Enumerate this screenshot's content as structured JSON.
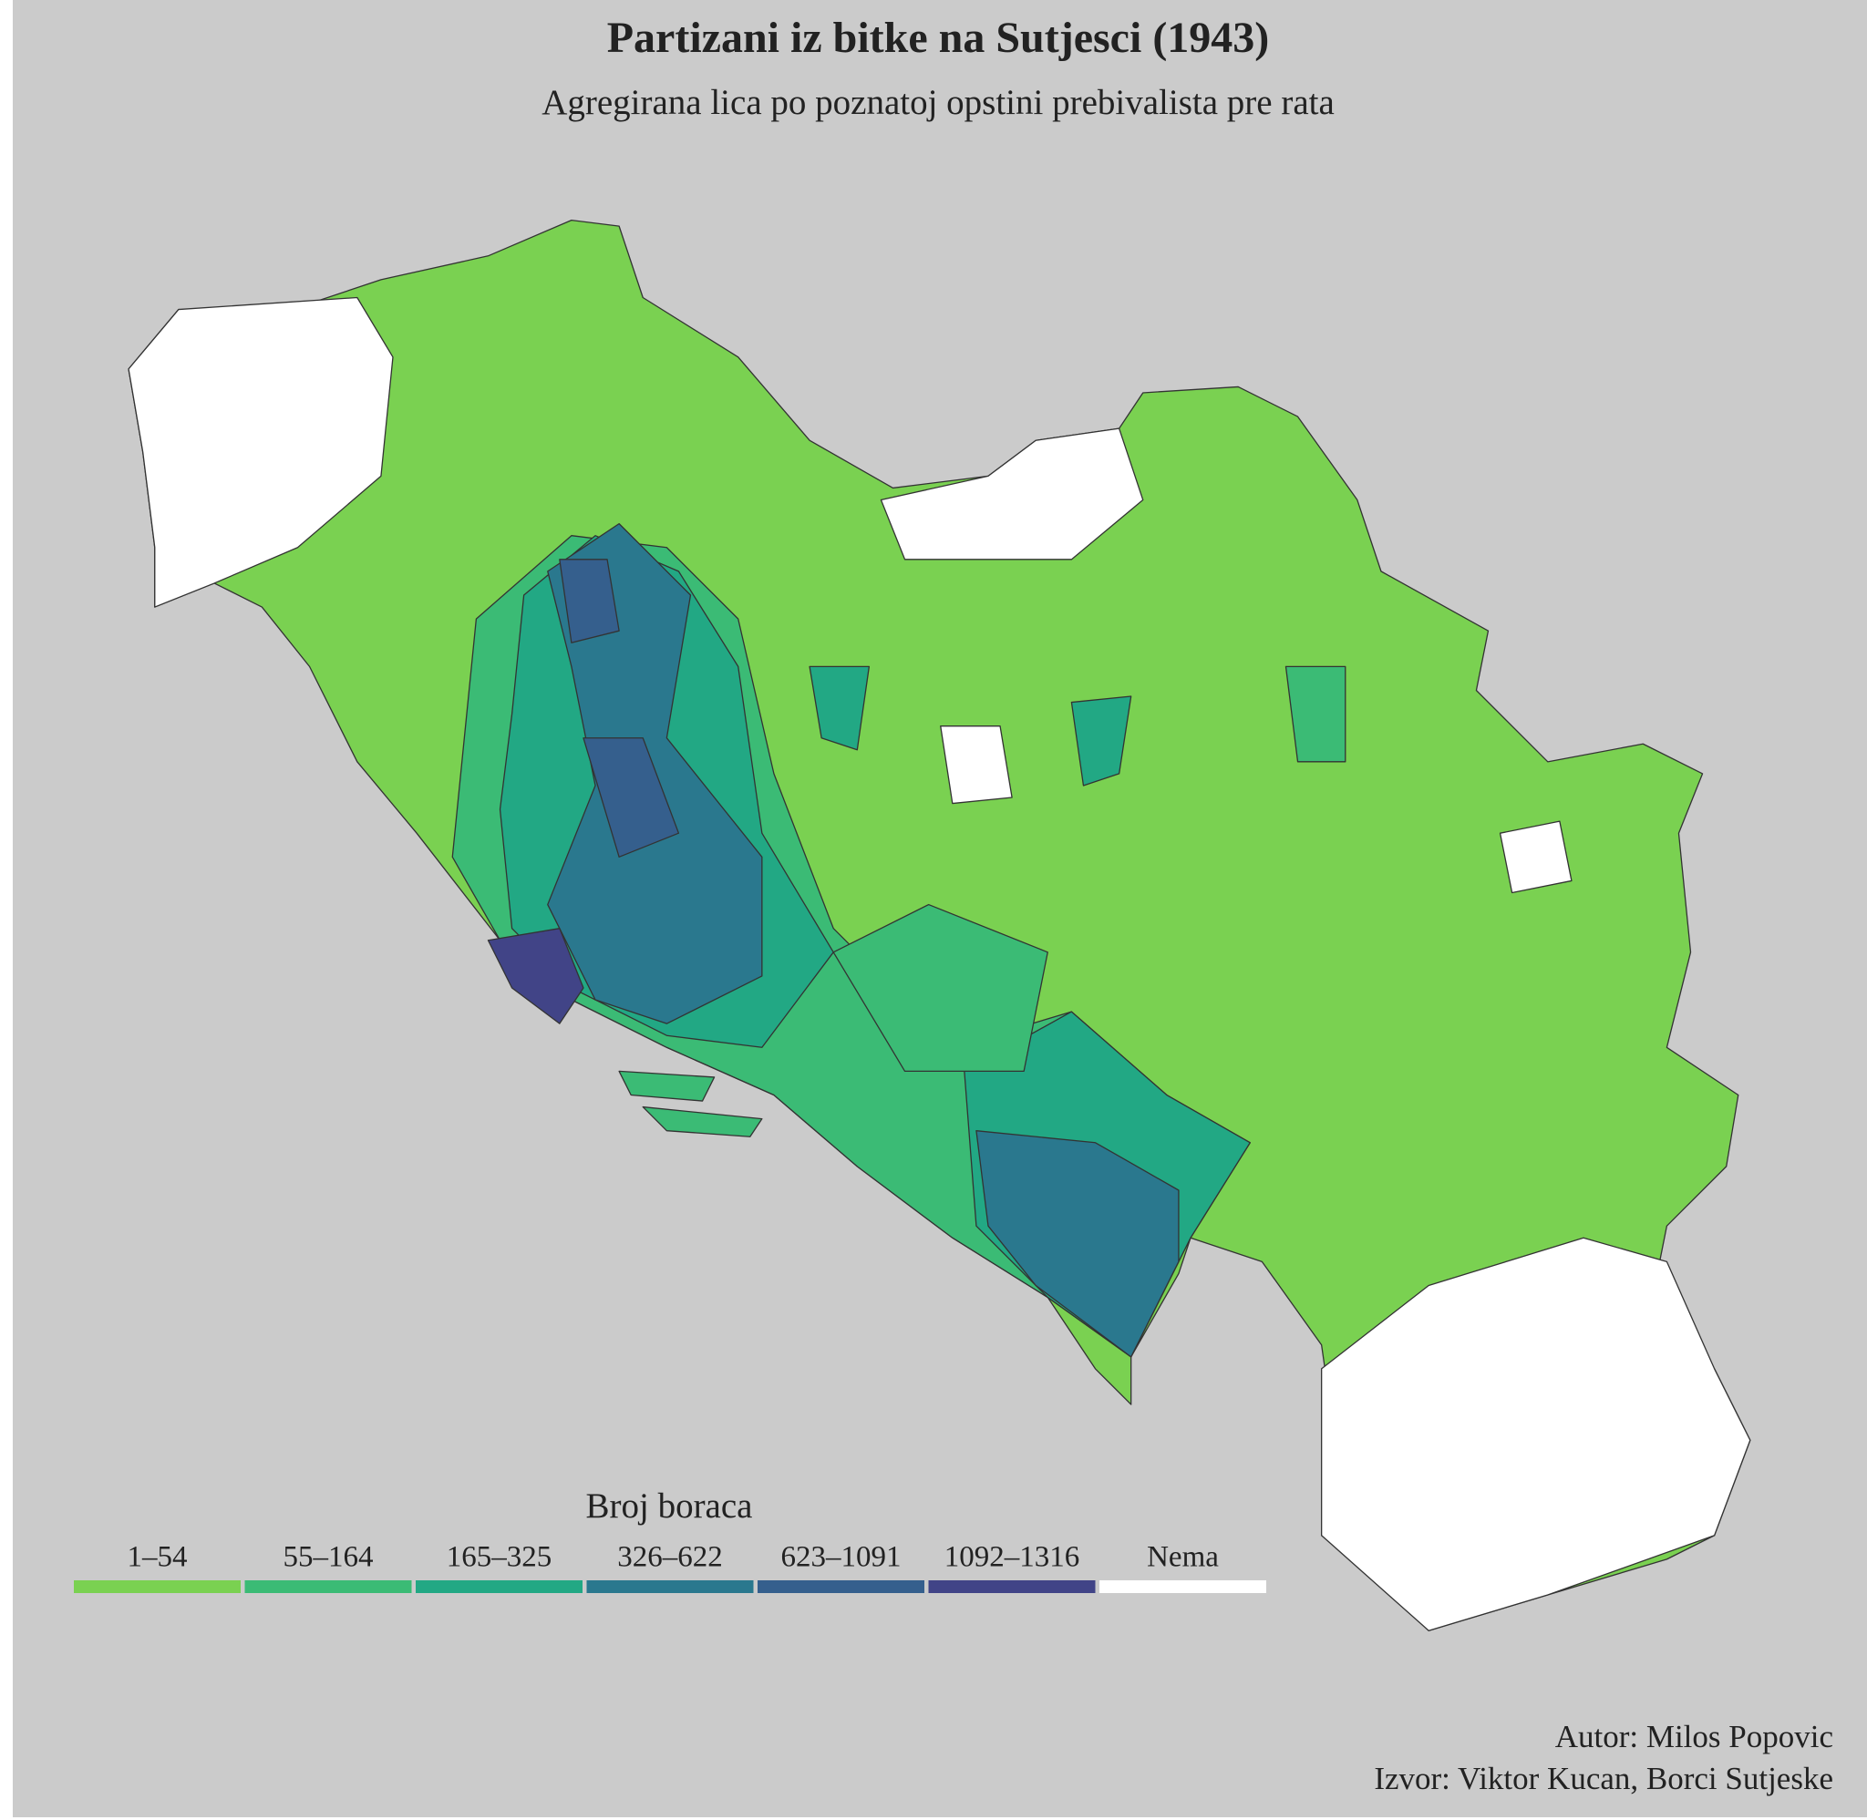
{
  "header": {
    "title": "Partizani iz bitke na Sutjesci (1943)",
    "subtitle": "Agregirana lica po poznatoj opstini prebivalista pre rata"
  },
  "legend": {
    "title": "Broj boraca",
    "items": [
      {
        "label": "1–54",
        "color": "#7ad151"
      },
      {
        "label": "55–164",
        "color": "#3bbb75"
      },
      {
        "label": "165–325",
        "color": "#22a884"
      },
      {
        "label": "326–622",
        "color": "#2a788e"
      },
      {
        "label": "623–1091",
        "color": "#355f8d"
      },
      {
        "label": "1092–1316",
        "color": "#414487"
      },
      {
        "label": "Nema",
        "color": "#ffffff"
      }
    ]
  },
  "credits": {
    "author": "Autor: Milos Popovic",
    "source": "Izvor: Viktor Kucan, Borci Sutjeske"
  }
}
